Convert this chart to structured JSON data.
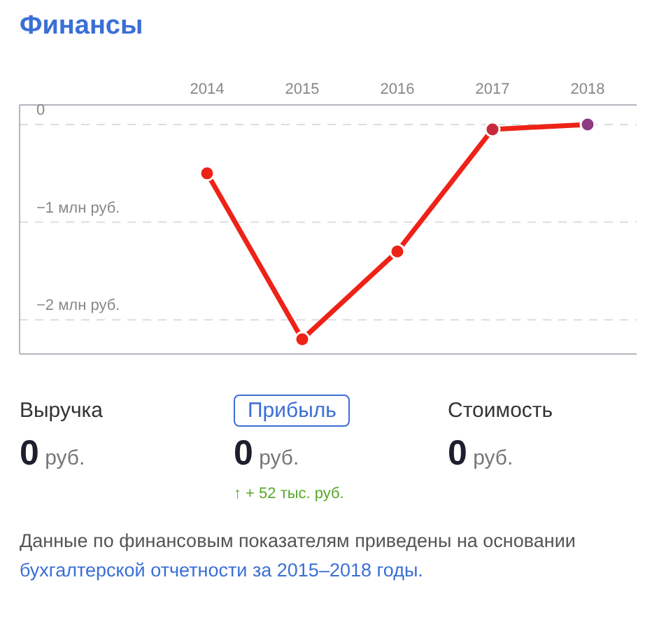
{
  "chart_data": {
    "type": "line",
    "title": "Финансы",
    "categories": [
      "2014",
      "2015",
      "2016",
      "2017",
      "2018"
    ],
    "series": [
      {
        "color": "#ee2217",
        "colors": [
          "#ee2217",
          "#ee2217",
          "#ee2217",
          "#c8293a",
          "#8e3b84"
        ],
        "values": [
          -0.5,
          -2.2,
          -1.3,
          -0.05,
          0
        ]
      }
    ],
    "ylim": [
      -2.35,
      0.2
    ],
    "yticks": [
      {
        "value": 0,
        "label": "0"
      },
      {
        "value": -1,
        "label": "−1 млн руб."
      },
      {
        "value": -2,
        "label": "−2 млн руб."
      }
    ],
    "grid": "y",
    "marker": "circle",
    "line_style": "solid",
    "annotations": [
      "Выручка",
      "0 руб.",
      "Прибыль",
      "0 руб.",
      "Стоимость",
      "0 руб.",
      "↑ + 52 тыс. руб.",
      "Данные по финансовым показателям приведены на основании",
      "бухгалтерской отчетности за 2015–2018 годы."
    ]
  }
}
